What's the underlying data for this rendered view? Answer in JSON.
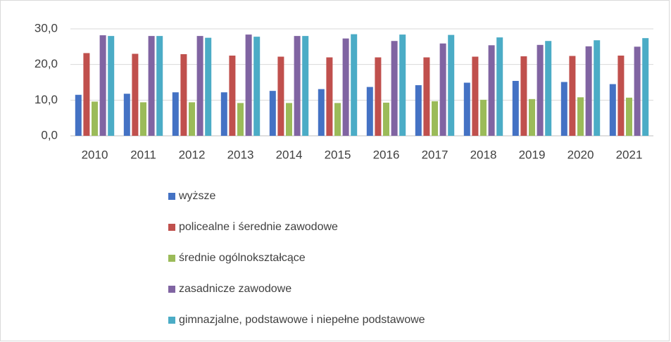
{
  "chart_data": {
    "type": "bar",
    "categories": [
      "2010",
      "2011",
      "2012",
      "2013",
      "2014",
      "2015",
      "2016",
      "2017",
      "2018",
      "2019",
      "2020",
      "2021"
    ],
    "series": [
      {
        "name": "wyższe",
        "color": "#4472c4",
        "values": [
          11.5,
          11.8,
          12.2,
          12.2,
          12.6,
          13.1,
          13.7,
          14.2,
          14.9,
          15.4,
          15.1,
          14.5
        ]
      },
      {
        "name": "policealne i śerednie zawodowe",
        "color": "#c0504d",
        "values": [
          23.2,
          23.0,
          22.9,
          22.5,
          22.2,
          22.0,
          22.0,
          22.0,
          22.2,
          22.3,
          22.4,
          22.5
        ]
      },
      {
        "name": "średnie ogólnokształcące",
        "color": "#9bbb59",
        "values": [
          9.6,
          9.4,
          9.4,
          9.2,
          9.2,
          9.2,
          9.3,
          9.7,
          10.1,
          10.3,
          10.8,
          10.7
        ]
      },
      {
        "name": "zasadnicze zawodowe",
        "color": "#8064a2",
        "values": [
          28.2,
          28.0,
          28.0,
          28.4,
          28.0,
          27.3,
          26.6,
          25.9,
          25.4,
          25.5,
          25.1,
          25.0
        ]
      },
      {
        "name": "gimnazjalne, podstawowe i niepełne podstawowe",
        "color": "#4bacc6",
        "values": [
          28.0,
          28.0,
          27.5,
          27.8,
          28.0,
          28.5,
          28.4,
          28.3,
          27.6,
          26.6,
          26.8,
          27.4
        ]
      }
    ],
    "ylim": [
      0,
      30
    ],
    "yticks": [
      {
        "value": 0,
        "label": "0,0"
      },
      {
        "value": 10,
        "label": "10,0"
      },
      {
        "value": 20,
        "label": "20,0"
      },
      {
        "value": 30,
        "label": "30,0"
      }
    ],
    "grid": true,
    "legend": "bottom"
  }
}
